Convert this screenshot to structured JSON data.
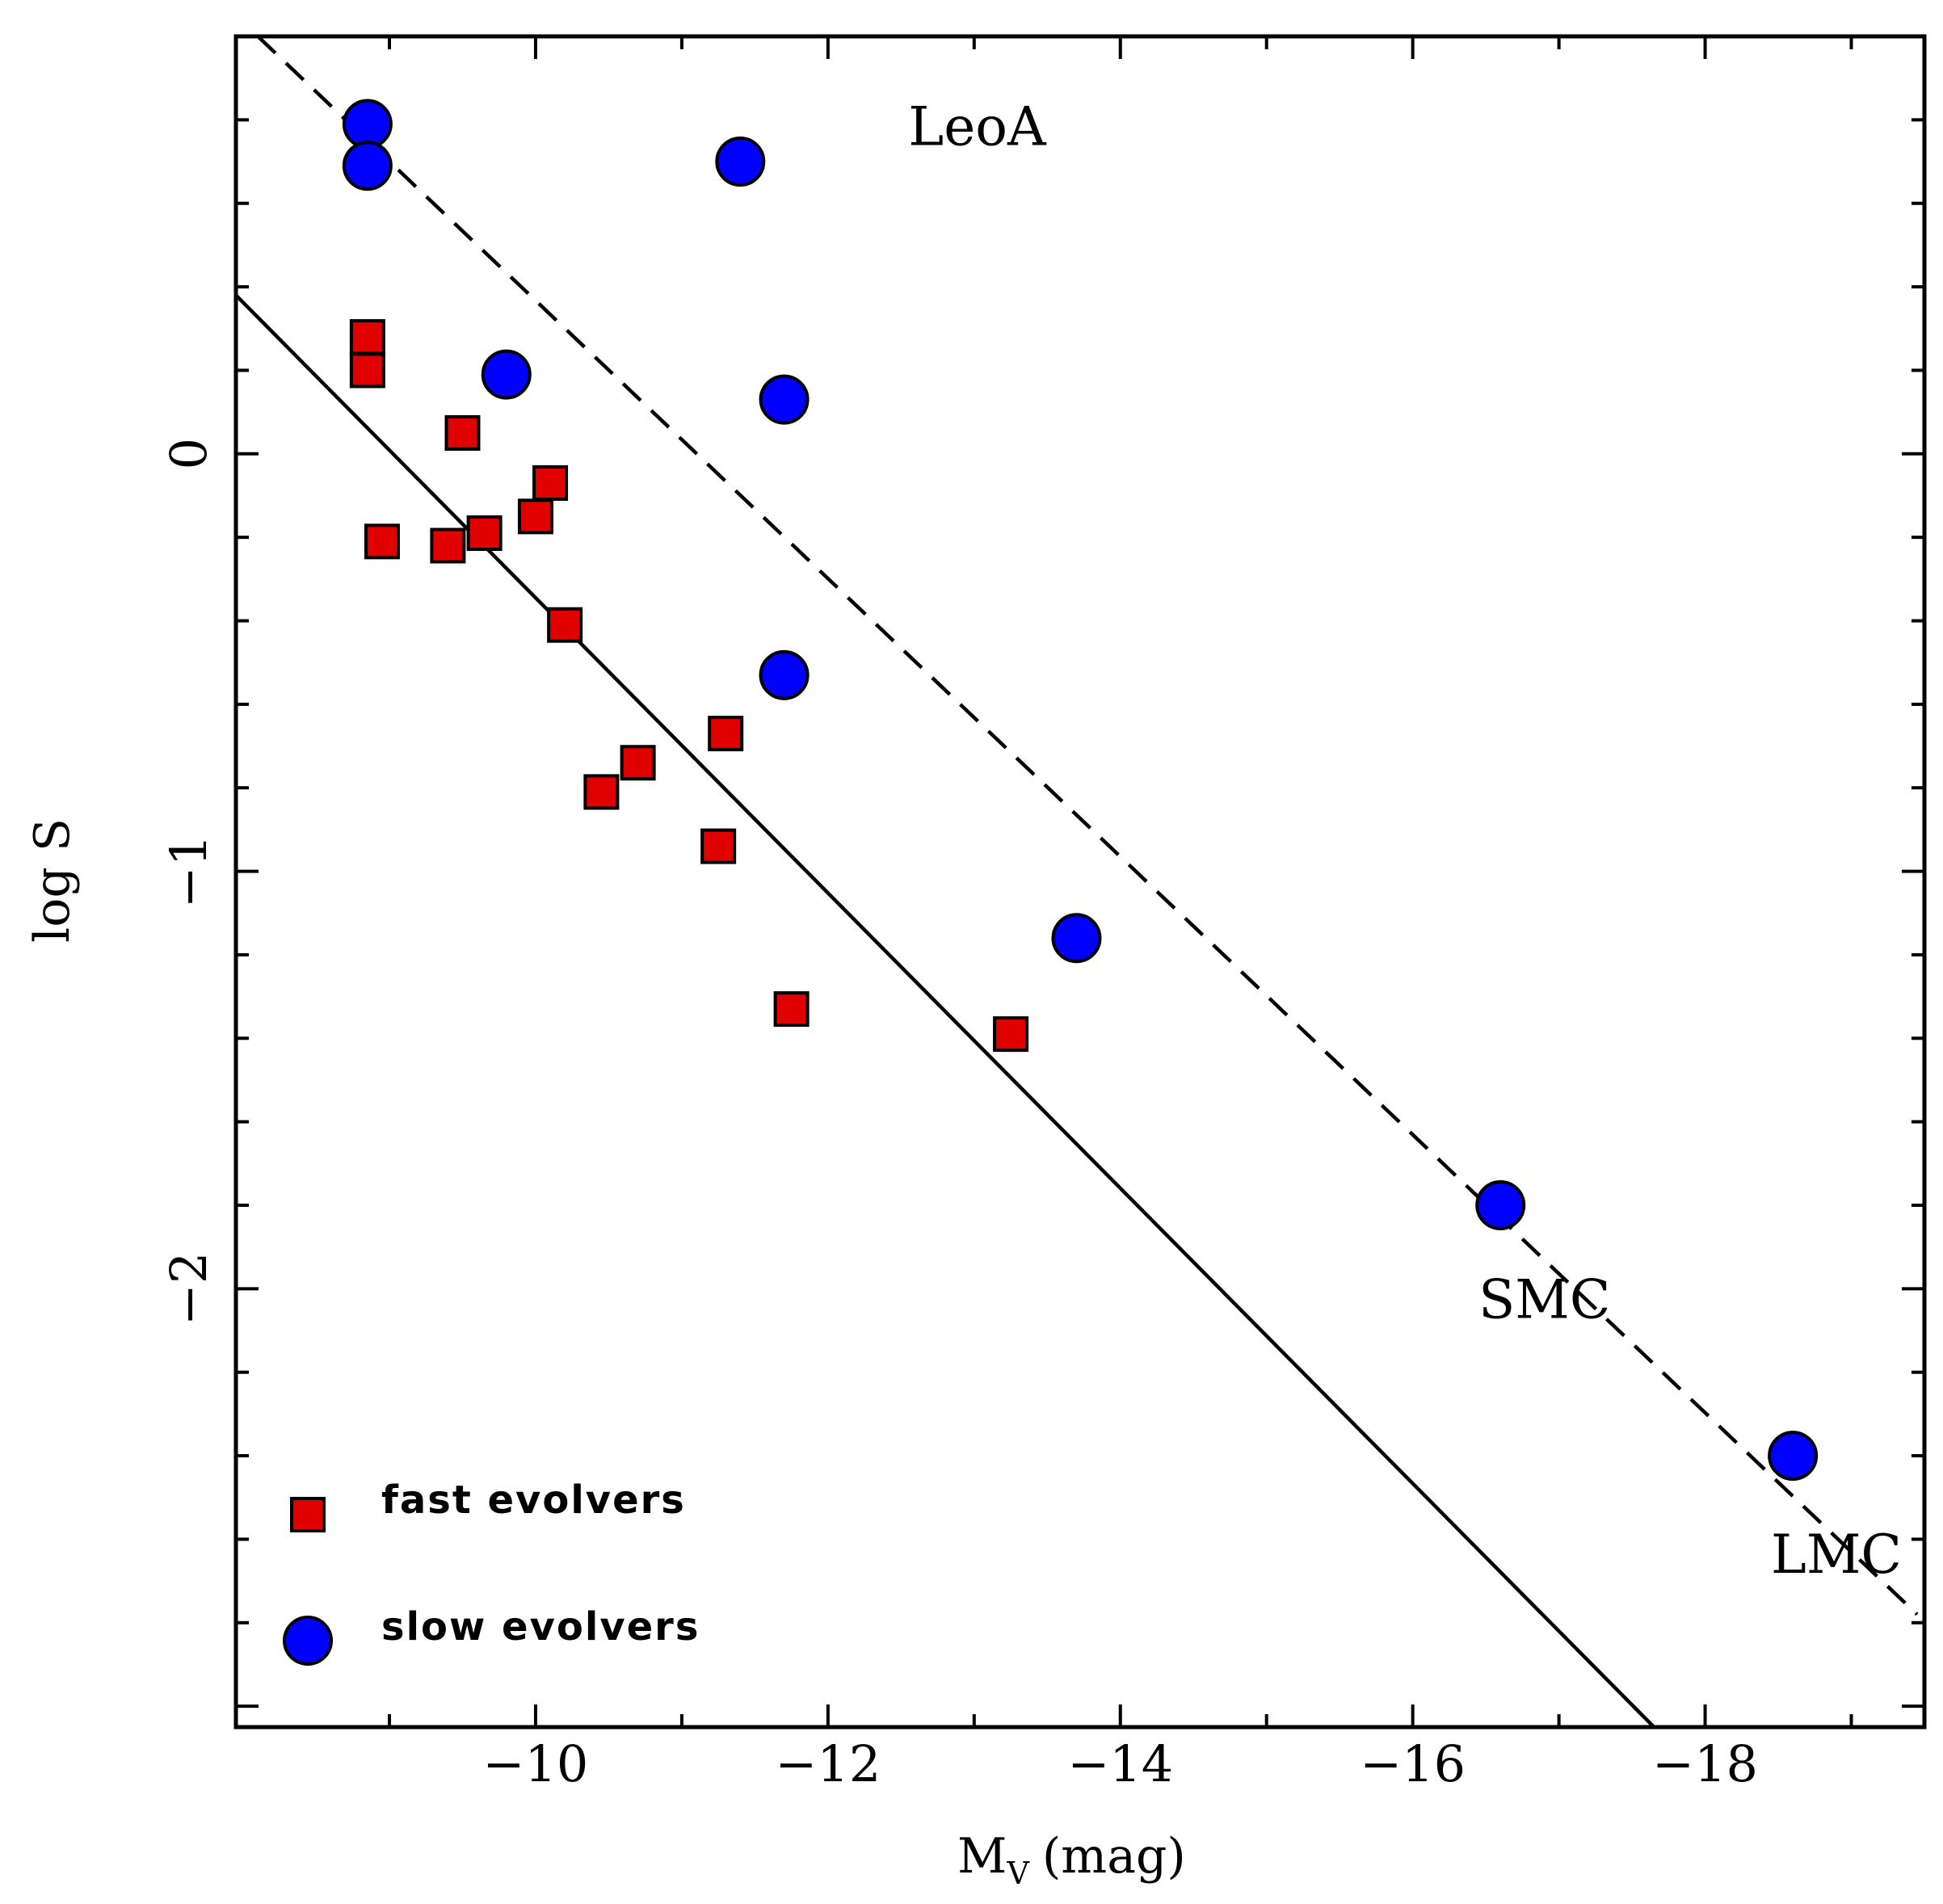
{
  "chart_data": {
    "type": "scatter",
    "title": "",
    "xlabel": "M",
    "xlabel_sub": "V",
    "xlabel_unit": "(mag)",
    "ylabel": "log S",
    "xlim": [
      -7.95,
      -19.5
    ],
    "ylim": [
      -3.05,
      1.0
    ],
    "xticks_major": [
      -10,
      -12,
      -14,
      -16,
      -18
    ],
    "xtick_labels": [
      "−10",
      "−12",
      "−14",
      "−16",
      "−18"
    ],
    "yticks_major": [
      0,
      -1,
      -2
    ],
    "ytick_labels": [
      "0",
      "−1",
      "−2"
    ],
    "series": [
      {
        "name": "fast evolvers",
        "marker": "square",
        "color": "#e00000",
        "points": [
          {
            "x": -8.85,
            "y": 0.28
          },
          {
            "x": -8.85,
            "y": 0.2
          },
          {
            "x": -8.95,
            "y": -0.21
          },
          {
            "x": -9.5,
            "y": 0.05
          },
          {
            "x": -9.4,
            "y": -0.22
          },
          {
            "x": -9.65,
            "y": -0.19
          },
          {
            "x": -10.0,
            "y": -0.15
          },
          {
            "x": -10.1,
            "y": -0.07
          },
          {
            "x": -10.2,
            "y": -0.41
          },
          {
            "x": -10.45,
            "y": -0.81
          },
          {
            "x": -10.7,
            "y": -0.74
          },
          {
            "x": -11.25,
            "y": -0.94
          },
          {
            "x": -11.3,
            "y": -0.67
          },
          {
            "x": -11.75,
            "y": -1.33
          },
          {
            "x": -13.25,
            "y": -1.39
          }
        ]
      },
      {
        "name": "slow evolvers",
        "marker": "circle",
        "color": "#0000ff",
        "points": [
          {
            "x": -8.85,
            "y": 0.79
          },
          {
            "x": -8.85,
            "y": 0.69
          },
          {
            "x": -11.4,
            "y": 0.7
          },
          {
            "x": -9.8,
            "y": 0.19
          },
          {
            "x": -11.7,
            "y": 0.13
          },
          {
            "x": -11.7,
            "y": -0.53
          },
          {
            "x": -13.7,
            "y": -1.16
          },
          {
            "x": -16.6,
            "y": -1.8
          },
          {
            "x": -18.6,
            "y": -2.4
          }
        ]
      }
    ],
    "lines": [
      {
        "name": "solid-fit",
        "style": "solid",
        "x": [
          -7.95,
          -17.65
        ],
        "y": [
          0.38,
          -3.05
        ]
      },
      {
        "name": "dashed-fit",
        "style": "dashed",
        "x": [
          -8.1,
          -19.45
        ],
        "y": [
          1.0,
          -2.78
        ]
      }
    ],
    "annotations": [
      {
        "text": "LeoA",
        "x": -12.55,
        "y": 0.74
      },
      {
        "text": "SMC",
        "x": -16.45,
        "y": -2.07
      },
      {
        "text": "LMC",
        "x": -18.45,
        "y": -2.68
      }
    ],
    "legend": {
      "position": "bottom-left",
      "entries": [
        "fast evolvers",
        "slow evolvers"
      ]
    }
  }
}
